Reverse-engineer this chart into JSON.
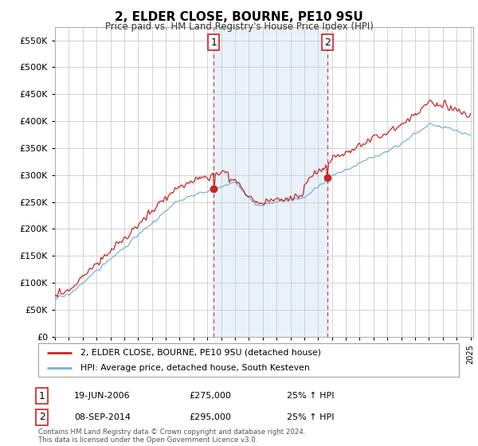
{
  "title": "2, ELDER CLOSE, BOURNE, PE10 9SU",
  "subtitle": "Price paid vs. HM Land Registry's House Price Index (HPI)",
  "background_color": "#ffffff",
  "plot_bg_color": "#ffffff",
  "ylim": [
    0,
    575000
  ],
  "yticks": [
    0,
    50000,
    100000,
    150000,
    200000,
    250000,
    300000,
    350000,
    400000,
    450000,
    500000,
    550000
  ],
  "xstart_year": 1995,
  "xend_year": 2025,
  "sale1_x": 2006.47,
  "sale1_price": 275000,
  "sale2_x": 2014.68,
  "sale2_price": 295000,
  "shade_color": "#ddeeff",
  "line_color_property": "#cc2222",
  "line_color_hpi": "#7ab0d4",
  "grid_color": "#cccccc",
  "legend_label_property": "2, ELDER CLOSE, BOURNE, PE10 9SU (detached house)",
  "legend_label_hpi": "HPI: Average price, detached house, South Kesteven",
  "annotation1_date": "19-JUN-2006",
  "annotation1_price": "£275,000",
  "annotation1_hpi": "25% ↑ HPI",
  "annotation2_date": "08-SEP-2014",
  "annotation2_price": "£295,000",
  "annotation2_hpi": "25% ↑ HPI",
  "footer": "Contains HM Land Registry data © Crown copyright and database right 2024.\nThis data is licensed under the Open Government Licence v3.0."
}
